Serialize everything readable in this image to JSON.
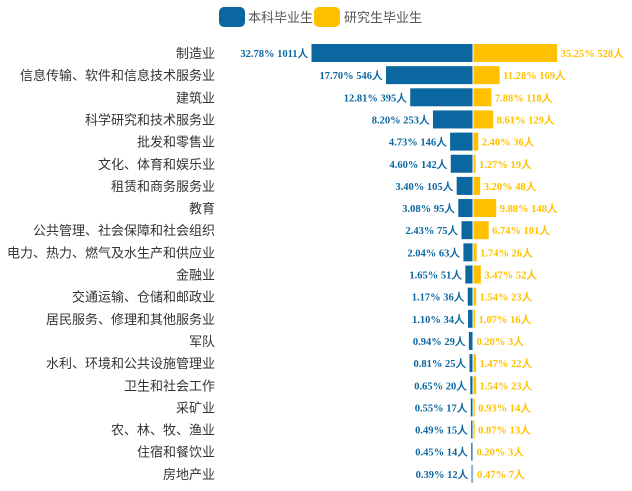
{
  "chart_data": {
    "type": "bar",
    "orientation": "horizontal-butterfly",
    "legend_position": "top",
    "grid": false,
    "colors": {
      "undergraduate": "#0A67A0",
      "graduate": "#FFC000"
    },
    "categories": [
      "制造业",
      "信息传输、软件和信息技术服务业",
      "建筑业",
      "科学研究和技术服务业",
      "批发和零售业",
      "文化、体育和娱乐业",
      "租赁和商务服务业",
      "教育",
      "公共管理、社会保障和社会组织",
      "电力、热力、燃气及水生产和供应业",
      "金融业",
      "交通运输、仓储和邮政业",
      "居民服务、修理和其他服务业",
      "军队",
      "水利、环境和公共设施管理业",
      "卫生和社会工作",
      "采矿业",
      "农、林、牧、渔业",
      "住宿和餐饮业",
      "房地产业"
    ],
    "series": [
      {
        "name": "本科毕业生",
        "values": [
          1011,
          546,
          395,
          253,
          146,
          142,
          105,
          95,
          75,
          63,
          51,
          36,
          34,
          29,
          25,
          20,
          17,
          15,
          14,
          12
        ],
        "percents": [
          "32.78%",
          "17.70%",
          "12.81%",
          "8.20%",
          "4.73%",
          "4.60%",
          "3.40%",
          "3.08%",
          "2.43%",
          "2.04%",
          "1.65%",
          "1.17%",
          "1.10%",
          "0.94%",
          "0.81%",
          "0.65%",
          "0.55%",
          "0.49%",
          "0.45%",
          "0.39%"
        ],
        "labels": [
          "32.78% 1011人",
          "17.70% 546人",
          "12.81% 395人",
          "8.20% 253人",
          "4.73% 146人",
          "4.60% 142人",
          "3.40% 105人",
          "3.08% 95人",
          "2.43% 75人",
          "2.04% 63人",
          "1.65% 51人",
          "1.17% 36人",
          "1.10% 34人",
          "0.94% 29人",
          "0.81% 25人",
          "0.65% 20人",
          "0.55% 17人",
          "0.49% 15人",
          "0.45% 14人",
          "0.39% 12人"
        ]
      },
      {
        "name": "研究生毕业生",
        "values": [
          528,
          169,
          118,
          129,
          36,
          19,
          48,
          148,
          101,
          26,
          52,
          23,
          16,
          3,
          22,
          23,
          14,
          13,
          3,
          7
        ],
        "percents": [
          "35.25%",
          "11.28%",
          "7.88%",
          "8.61%",
          "2.40%",
          "1.27%",
          "3.20%",
          "9.88%",
          "6.74%",
          "1.74%",
          "3.47%",
          "1.54%",
          "1.07%",
          "0.20%",
          "1.47%",
          "1.54%",
          "0.93%",
          "0.87%",
          "0.20%",
          "0.47%"
        ],
        "labels": [
          "35.25% 528人",
          "11.28% 169人",
          "7.88% 118人",
          "8.61% 129人",
          "2.40% 36人",
          "1.27% 19人",
          "3.20% 48人",
          "9.88% 148人",
          "6.74% 101人",
          "1.74% 26人",
          "3.47% 52人",
          "1.54% 23人",
          "1.07% 16人",
          "0.20% 3人",
          "1.47% 22人",
          "1.54% 23人",
          "0.93% 14人",
          "0.87% 13人",
          "0.20% 3人",
          "0.47% 7人"
        ]
      }
    ]
  }
}
